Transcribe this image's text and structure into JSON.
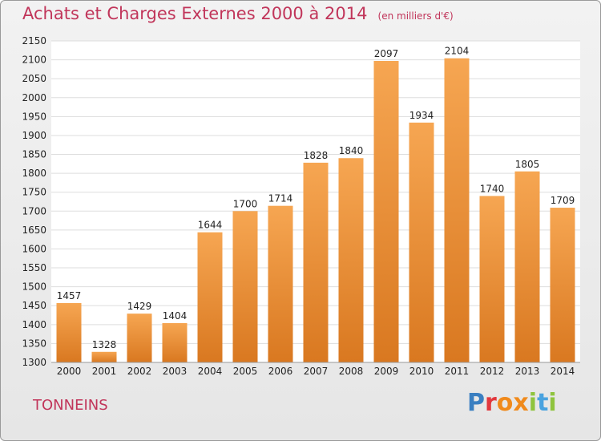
{
  "header": {
    "title": "Achats et Charges Externes 2000 à 2014",
    "unit": "(en milliers d'€)"
  },
  "commune": "TONNEINS",
  "logo": {
    "text": "Proxiti",
    "letter_colors": [
      "#3a7fc1",
      "#e2383e",
      "#f08a1c",
      "#f08a1c",
      "#8fc43e",
      "#4aa3df",
      "#8fc43e"
    ]
  },
  "colors": {
    "bar_top": "#f6a652",
    "bar_bottom": "#d97820",
    "title": "#c1355a",
    "grid": "#dddddd"
  },
  "chart_data": {
    "type": "bar",
    "title": "Achats et Charges Externes 2000 à 2014",
    "subtitle": "(en milliers d'€)",
    "xlabel": "",
    "ylabel": "",
    "categories": [
      "2000",
      "2001",
      "2002",
      "2003",
      "2004",
      "2005",
      "2006",
      "2007",
      "2008",
      "2009",
      "2010",
      "2011",
      "2012",
      "2013",
      "2014"
    ],
    "values": [
      1457,
      1328,
      1429,
      1404,
      1644,
      1700,
      1714,
      1828,
      1840,
      2097,
      1934,
      2104,
      1740,
      1805,
      1709
    ],
    "ylim": [
      1300,
      2150
    ],
    "yticks": [
      1300,
      1350,
      1400,
      1450,
      1500,
      1550,
      1600,
      1650,
      1700,
      1750,
      1800,
      1850,
      1900,
      1950,
      2000,
      2050,
      2100,
      2150
    ],
    "grid": true,
    "data_labels": true
  }
}
